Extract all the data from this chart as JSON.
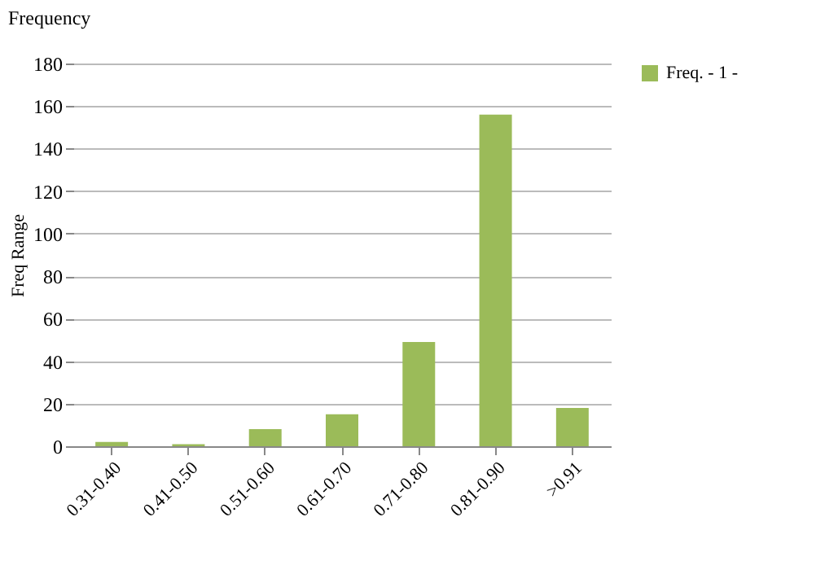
{
  "chart_data": {
    "type": "bar",
    "title": "Frequency",
    "ylabel": "Freq Range",
    "categories": [
      "0.31-0.40",
      "0.41-0.50",
      "0.51-0.60",
      "0.61-0.70",
      "0.71-0.80",
      "0.81-0.90",
      ">0.91"
    ],
    "series": [
      {
        "name": "Freq. - 1 -",
        "color": "#9bbb59",
        "values": [
          2,
          1,
          8,
          15,
          49,
          156,
          18
        ]
      }
    ],
    "ylim": [
      0,
      180
    ],
    "yticks": [
      0,
      20,
      40,
      60,
      80,
      100,
      120,
      140,
      160,
      180
    ],
    "grid": "y",
    "legend": "right"
  }
}
